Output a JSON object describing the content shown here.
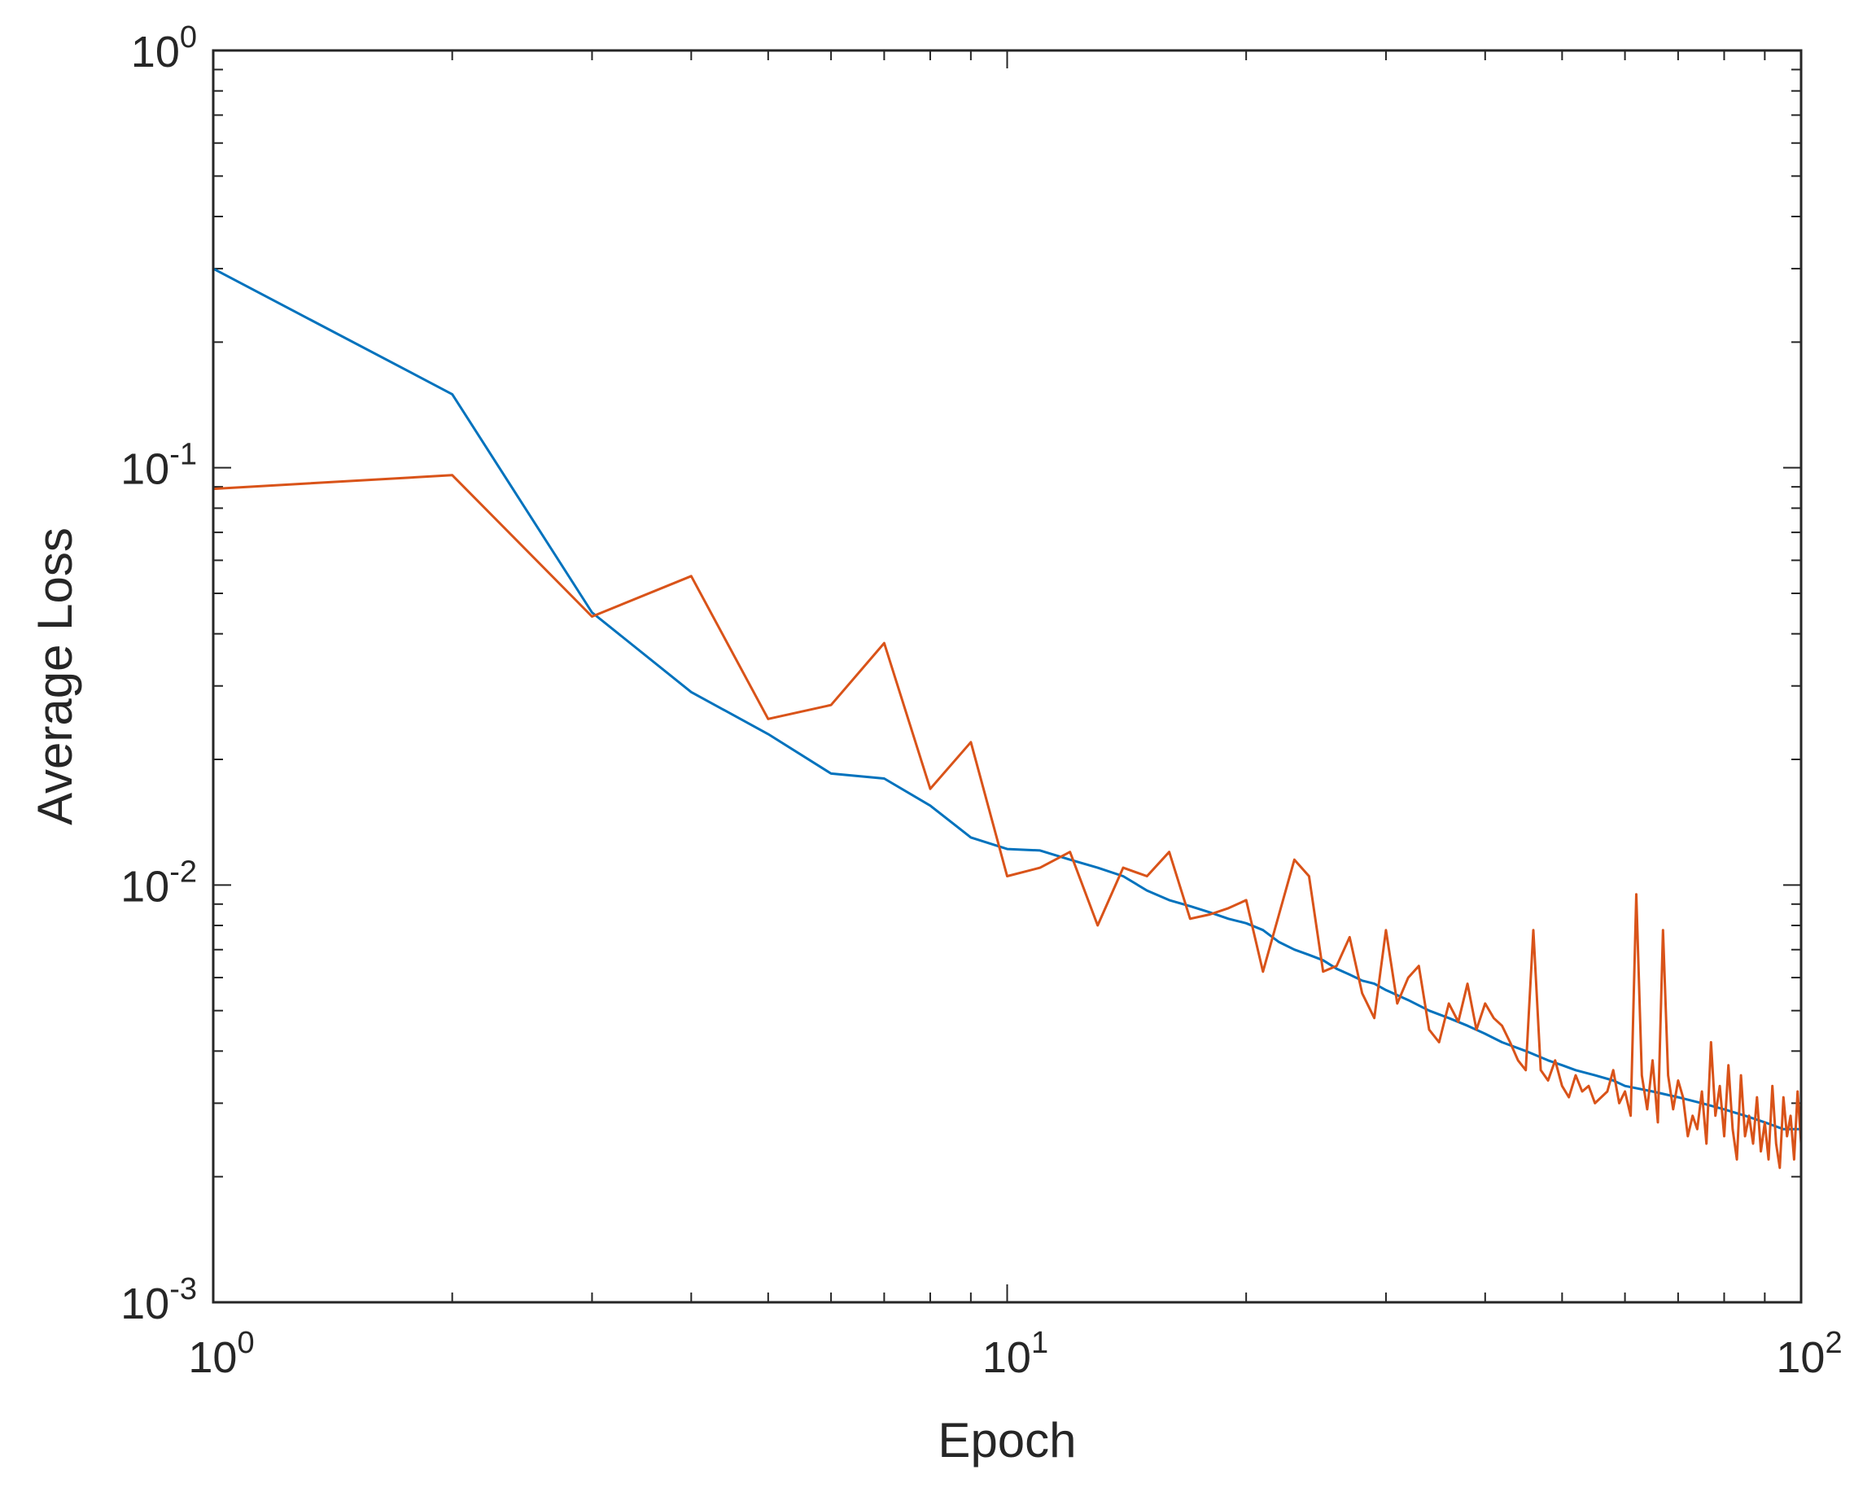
{
  "chart_data": {
    "type": "line",
    "title": "",
    "xlabel": "Epoch",
    "ylabel": "Average Loss",
    "xscale": "log",
    "yscale": "log",
    "xlim": [
      1,
      100
    ],
    "ylim": [
      0.001,
      1
    ],
    "grid": false,
    "legend": "none",
    "x_ticks": [
      {
        "value": 1,
        "base": "10",
        "exp": "0"
      },
      {
        "value": 10,
        "base": "10",
        "exp": "1"
      },
      {
        "value": 100,
        "base": "10",
        "exp": "2"
      }
    ],
    "y_ticks": [
      {
        "value": 0.001,
        "base": "10",
        "exp": "-3"
      },
      {
        "value": 0.01,
        "base": "10",
        "exp": "-2"
      },
      {
        "value": 0.1,
        "base": "10",
        "exp": "-1"
      },
      {
        "value": 1,
        "base": "10",
        "exp": "0"
      }
    ],
    "series": [
      {
        "color": "#0072BD",
        "x": [
          1,
          2,
          3,
          4,
          5,
          6,
          7,
          8,
          9,
          10,
          11,
          12,
          13,
          14,
          15,
          16,
          17,
          18,
          19,
          20,
          21,
          22,
          23,
          24,
          25,
          26,
          27,
          28,
          29,
          30,
          32,
          34,
          36,
          38,
          40,
          42,
          45,
          48,
          50,
          52,
          55,
          58,
          60,
          65,
          70,
          75,
          80,
          85,
          90,
          95,
          100
        ],
        "y": [
          0.3,
          0.15,
          0.045,
          0.029,
          0.023,
          0.0185,
          0.018,
          0.0155,
          0.013,
          0.0122,
          0.0121,
          0.0115,
          0.011,
          0.0105,
          0.0097,
          0.0092,
          0.0089,
          0.0086,
          0.0083,
          0.0081,
          0.0078,
          0.0073,
          0.007,
          0.0068,
          0.0066,
          0.0063,
          0.0061,
          0.0059,
          0.0058,
          0.0056,
          0.0053,
          0.005,
          0.0048,
          0.0046,
          0.0044,
          0.0042,
          0.004,
          0.0038,
          0.0037,
          0.0036,
          0.0035,
          0.0034,
          0.0033,
          0.0032,
          0.0031,
          0.003,
          0.0029,
          0.0028,
          0.0027,
          0.0026,
          0.0026
        ]
      },
      {
        "color": "#D95319",
        "x": [
          1,
          2,
          3,
          4,
          5,
          6,
          7,
          8,
          9,
          10,
          11,
          12,
          13,
          14,
          15,
          16,
          17,
          18,
          19,
          20,
          21,
          22,
          23,
          24,
          25,
          26,
          27,
          28,
          29,
          30,
          31,
          32,
          33,
          34,
          35,
          36,
          37,
          38,
          39,
          40,
          41,
          42,
          43,
          44,
          45,
          46,
          47,
          48,
          49,
          50,
          51,
          52,
          53,
          54,
          55,
          56,
          57,
          58,
          59,
          60,
          61,
          62,
          63,
          64,
          65,
          66,
          67,
          68,
          69,
          70,
          71,
          72,
          73,
          74,
          75,
          76,
          77,
          78,
          79,
          80,
          81,
          82,
          83,
          84,
          85,
          86,
          87,
          88,
          89,
          90,
          91,
          92,
          93,
          94,
          95,
          96,
          97,
          98,
          99,
          100
        ],
        "y": [
          0.089,
          0.096,
          0.044,
          0.055,
          0.025,
          0.027,
          0.038,
          0.017,
          0.022,
          0.0105,
          0.011,
          0.012,
          0.008,
          0.011,
          0.0105,
          0.012,
          0.0083,
          0.0085,
          0.0088,
          0.0092,
          0.0062,
          0.0085,
          0.0115,
          0.0105,
          0.0062,
          0.0064,
          0.0075,
          0.0055,
          0.0048,
          0.0078,
          0.0052,
          0.006,
          0.0064,
          0.0045,
          0.0042,
          0.0052,
          0.0047,
          0.0058,
          0.0045,
          0.0052,
          0.0048,
          0.0046,
          0.0042,
          0.0038,
          0.0036,
          0.0078,
          0.0036,
          0.0034,
          0.0038,
          0.0033,
          0.0031,
          0.0035,
          0.0032,
          0.0033,
          0.003,
          0.0031,
          0.0032,
          0.0036,
          0.003,
          0.0032,
          0.0028,
          0.0095,
          0.0035,
          0.0029,
          0.0038,
          0.0027,
          0.0078,
          0.0035,
          0.0029,
          0.0034,
          0.0031,
          0.0025,
          0.0028,
          0.0026,
          0.0032,
          0.0024,
          0.0042,
          0.0028,
          0.0033,
          0.0025,
          0.0037,
          0.0026,
          0.0022,
          0.0035,
          0.0025,
          0.0028,
          0.0024,
          0.0031,
          0.0023,
          0.0027,
          0.0022,
          0.0033,
          0.0024,
          0.0021,
          0.0031,
          0.0025,
          0.0028,
          0.0022,
          0.0032,
          0.0024
        ]
      }
    ]
  }
}
